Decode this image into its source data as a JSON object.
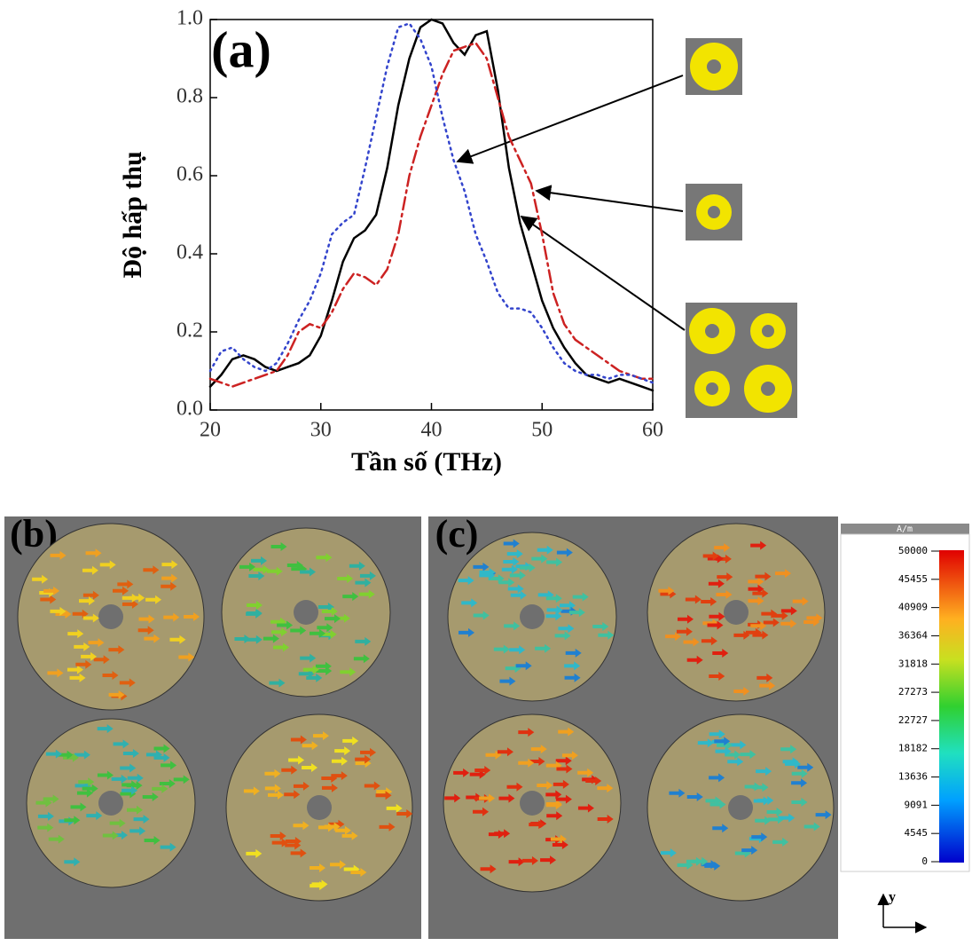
{
  "chart_data": {
    "type": "line",
    "annotation": "(a)",
    "x_label": "Tần số (THz)",
    "y_label": "Độ hấp thụ",
    "x": [
      20,
      21,
      22,
      23,
      24,
      25,
      26,
      27,
      28,
      29,
      30,
      31,
      32,
      33,
      34,
      35,
      36,
      37,
      38,
      39,
      40,
      41,
      42,
      43,
      44,
      45,
      46,
      47,
      48,
      49,
      50,
      51,
      52,
      53,
      54,
      55,
      56,
      57,
      58,
      59,
      60
    ],
    "series": [
      {
        "color": "#000000",
        "line_style": "solid",
        "values": [
          0.06,
          0.09,
          0.13,
          0.14,
          0.13,
          0.11,
          0.1,
          0.11,
          0.12,
          0.14,
          0.19,
          0.28,
          0.38,
          0.44,
          0.46,
          0.5,
          0.62,
          0.78,
          0.9,
          0.98,
          1.0,
          0.99,
          0.94,
          0.91,
          0.96,
          0.97,
          0.82,
          0.62,
          0.48,
          0.38,
          0.28,
          0.21,
          0.16,
          0.12,
          0.09,
          0.08,
          0.07,
          0.08,
          0.07,
          0.06,
          0.05
        ]
      },
      {
        "color": "#cc2222",
        "line_style": "dashdot",
        "values": [
          0.08,
          0.07,
          0.06,
          0.07,
          0.08,
          0.09,
          0.1,
          0.14,
          0.2,
          0.22,
          0.21,
          0.25,
          0.31,
          0.35,
          0.34,
          0.32,
          0.36,
          0.45,
          0.6,
          0.7,
          0.78,
          0.86,
          0.92,
          0.93,
          0.94,
          0.9,
          0.8,
          0.7,
          0.64,
          0.58,
          0.45,
          0.3,
          0.22,
          0.18,
          0.16,
          0.14,
          0.12,
          0.1,
          0.09,
          0.08,
          0.08
        ]
      },
      {
        "color": "#3344cc",
        "line_style": "dotted",
        "values": [
          0.1,
          0.15,
          0.16,
          0.13,
          0.11,
          0.1,
          0.12,
          0.17,
          0.23,
          0.28,
          0.35,
          0.45,
          0.48,
          0.5,
          0.62,
          0.75,
          0.88,
          0.98,
          0.99,
          0.95,
          0.88,
          0.75,
          0.64,
          0.56,
          0.45,
          0.38,
          0.3,
          0.26,
          0.26,
          0.25,
          0.21,
          0.16,
          0.12,
          0.1,
          0.09,
          0.09,
          0.08,
          0.09,
          0.09,
          0.08,
          0.07
        ]
      }
    ],
    "xlim": [
      20,
      60
    ],
    "xticks": [
      20,
      30,
      40,
      50,
      60
    ],
    "ylim": [
      0,
      1
    ],
    "yticks": [
      {
        "value": 0,
        "label": "0.0"
      },
      0.2,
      0.4,
      0.6,
      0.8,
      {
        "value": 1,
        "label": "1.0"
      }
    ]
  },
  "panels": {
    "b": {
      "label": "(b)"
    },
    "c": {
      "label": "(c)"
    }
  },
  "colorbar": {
    "title": "A/m",
    "lim": [
      0,
      50000
    ],
    "ticks": [
      50000,
      45455,
      40909,
      36364,
      31818,
      27273,
      22727,
      18182,
      13636,
      9091,
      4545,
      0
    ],
    "axis_label": "y"
  }
}
